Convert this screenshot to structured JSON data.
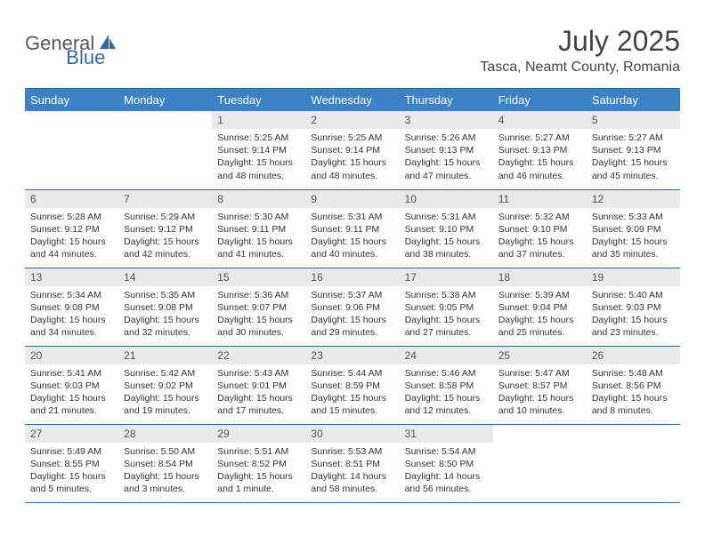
{
  "brand": {
    "part1": "General",
    "part2": "Blue"
  },
  "title": "July 2025",
  "location": "Tasca, Neamt County, Romania",
  "weekday_labels": [
    "Sunday",
    "Monday",
    "Tuesday",
    "Wednesday",
    "Thursday",
    "Friday",
    "Saturday"
  ],
  "colors": {
    "header_bg": "#3a82c4",
    "header_text": "#ffffff",
    "rule": "#2f6aa8",
    "daynum_bg": "#e9e9e9",
    "brand_gray": "#585858",
    "brand_blue": "#2f6aa8"
  },
  "typography": {
    "title_fontsize": 32,
    "location_fontsize": 16,
    "weekday_fontsize": 13,
    "daynum_fontsize": 12,
    "body_fontsize": 10.5
  },
  "layout": {
    "columns": 7,
    "rows": 5,
    "first_weekday_index": 2
  },
  "days": [
    {
      "n": "1",
      "sunrise": "5:25 AM",
      "sunset": "9:14 PM",
      "daylight": "15 hours and 48 minutes."
    },
    {
      "n": "2",
      "sunrise": "5:25 AM",
      "sunset": "9:14 PM",
      "daylight": "15 hours and 48 minutes."
    },
    {
      "n": "3",
      "sunrise": "5:26 AM",
      "sunset": "9:13 PM",
      "daylight": "15 hours and 47 minutes."
    },
    {
      "n": "4",
      "sunrise": "5:27 AM",
      "sunset": "9:13 PM",
      "daylight": "15 hours and 46 minutes."
    },
    {
      "n": "5",
      "sunrise": "5:27 AM",
      "sunset": "9:13 PM",
      "daylight": "15 hours and 45 minutes."
    },
    {
      "n": "6",
      "sunrise": "5:28 AM",
      "sunset": "9:12 PM",
      "daylight": "15 hours and 44 minutes."
    },
    {
      "n": "7",
      "sunrise": "5:29 AM",
      "sunset": "9:12 PM",
      "daylight": "15 hours and 42 minutes."
    },
    {
      "n": "8",
      "sunrise": "5:30 AM",
      "sunset": "9:11 PM",
      "daylight": "15 hours and 41 minutes."
    },
    {
      "n": "9",
      "sunrise": "5:31 AM",
      "sunset": "9:11 PM",
      "daylight": "15 hours and 40 minutes."
    },
    {
      "n": "10",
      "sunrise": "5:31 AM",
      "sunset": "9:10 PM",
      "daylight": "15 hours and 38 minutes."
    },
    {
      "n": "11",
      "sunrise": "5:32 AM",
      "sunset": "9:10 PM",
      "daylight": "15 hours and 37 minutes."
    },
    {
      "n": "12",
      "sunrise": "5:33 AM",
      "sunset": "9:09 PM",
      "daylight": "15 hours and 35 minutes."
    },
    {
      "n": "13",
      "sunrise": "5:34 AM",
      "sunset": "9:08 PM",
      "daylight": "15 hours and 34 minutes."
    },
    {
      "n": "14",
      "sunrise": "5:35 AM",
      "sunset": "9:08 PM",
      "daylight": "15 hours and 32 minutes."
    },
    {
      "n": "15",
      "sunrise": "5:36 AM",
      "sunset": "9:07 PM",
      "daylight": "15 hours and 30 minutes."
    },
    {
      "n": "16",
      "sunrise": "5:37 AM",
      "sunset": "9:06 PM",
      "daylight": "15 hours and 29 minutes."
    },
    {
      "n": "17",
      "sunrise": "5:38 AM",
      "sunset": "9:05 PM",
      "daylight": "15 hours and 27 minutes."
    },
    {
      "n": "18",
      "sunrise": "5:39 AM",
      "sunset": "9:04 PM",
      "daylight": "15 hours and 25 minutes."
    },
    {
      "n": "19",
      "sunrise": "5:40 AM",
      "sunset": "9:03 PM",
      "daylight": "15 hours and 23 minutes."
    },
    {
      "n": "20",
      "sunrise": "5:41 AM",
      "sunset": "9:03 PM",
      "daylight": "15 hours and 21 minutes."
    },
    {
      "n": "21",
      "sunrise": "5:42 AM",
      "sunset": "9:02 PM",
      "daylight": "15 hours and 19 minutes."
    },
    {
      "n": "22",
      "sunrise": "5:43 AM",
      "sunset": "9:01 PM",
      "daylight": "15 hours and 17 minutes."
    },
    {
      "n": "23",
      "sunrise": "5:44 AM",
      "sunset": "8:59 PM",
      "daylight": "15 hours and 15 minutes."
    },
    {
      "n": "24",
      "sunrise": "5:46 AM",
      "sunset": "8:58 PM",
      "daylight": "15 hours and 12 minutes."
    },
    {
      "n": "25",
      "sunrise": "5:47 AM",
      "sunset": "8:57 PM",
      "daylight": "15 hours and 10 minutes."
    },
    {
      "n": "26",
      "sunrise": "5:48 AM",
      "sunset": "8:56 PM",
      "daylight": "15 hours and 8 minutes."
    },
    {
      "n": "27",
      "sunrise": "5:49 AM",
      "sunset": "8:55 PM",
      "daylight": "15 hours and 5 minutes."
    },
    {
      "n": "28",
      "sunrise": "5:50 AM",
      "sunset": "8:54 PM",
      "daylight": "15 hours and 3 minutes."
    },
    {
      "n": "29",
      "sunrise": "5:51 AM",
      "sunset": "8:52 PM",
      "daylight": "15 hours and 1 minute."
    },
    {
      "n": "30",
      "sunrise": "5:53 AM",
      "sunset": "8:51 PM",
      "daylight": "14 hours and 58 minutes."
    },
    {
      "n": "31",
      "sunrise": "5:54 AM",
      "sunset": "8:50 PM",
      "daylight": "14 hours and 56 minutes."
    }
  ],
  "labels": {
    "sunrise": "Sunrise:",
    "sunset": "Sunset:",
    "daylight": "Daylight:"
  }
}
